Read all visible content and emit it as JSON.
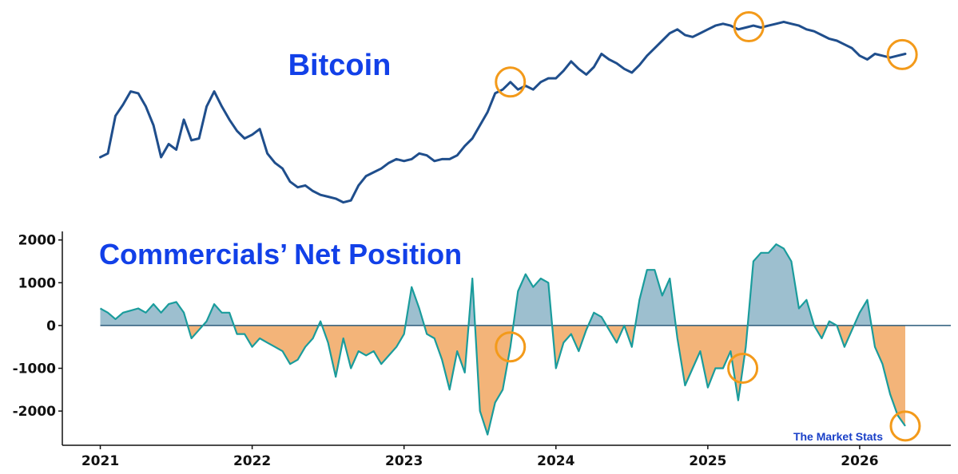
{
  "chart_data": [
    {
      "type": "line",
      "title": "Bitcoin",
      "y_axis_shown": false,
      "x": [
        2021.0,
        2021.05,
        2021.1,
        2021.15,
        2021.2,
        2021.25,
        2021.3,
        2021.35,
        2021.4,
        2021.45,
        2021.5,
        2021.55,
        2021.6,
        2021.65,
        2021.7,
        2021.75,
        2021.8,
        2021.85,
        2021.9,
        2021.95,
        2022.0,
        2022.05,
        2022.1,
        2022.15,
        2022.2,
        2022.25,
        2022.3,
        2022.35,
        2022.4,
        2022.45,
        2022.5,
        2022.55,
        2022.6,
        2022.65,
        2022.7,
        2022.75,
        2022.8,
        2022.85,
        2022.9,
        2022.95,
        2023.0,
        2023.05,
        2023.1,
        2023.15,
        2023.2,
        2023.25,
        2023.3,
        2023.35,
        2023.4,
        2023.45,
        2023.5,
        2023.55,
        2023.6,
        2023.65,
        2023.7,
        2023.75,
        2023.8,
        2023.85,
        2023.9,
        2023.95,
        2024.0,
        2024.05,
        2024.1,
        2024.15,
        2024.2,
        2024.25,
        2024.3,
        2024.35,
        2024.4,
        2024.45,
        2024.5,
        2024.55,
        2024.6,
        2024.65,
        2024.7,
        2024.75,
        2024.8,
        2024.85,
        2024.9,
        2024.95,
        2025.0,
        2025.05,
        2025.1,
        2025.15,
        2025.2,
        2025.25,
        2025.3,
        2025.35,
        2025.4,
        2025.45,
        2025.5,
        2025.55,
        2025.6,
        2025.65,
        2025.7,
        2025.75,
        2025.8,
        2025.85,
        2025.9,
        2025.95,
        2026.0,
        2026.05,
        2026.1,
        2026.15,
        2026.2,
        2026.25,
        2026.3
      ],
      "values": [
        28,
        30,
        50,
        56,
        63,
        62,
        55,
        45,
        28,
        35,
        32,
        48,
        37,
        38,
        55,
        63,
        55,
        48,
        42,
        38,
        40,
        43,
        30,
        25,
        22,
        15,
        12,
        13,
        10,
        8,
        7,
        6,
        4,
        5,
        13,
        18,
        20,
        22,
        25,
        27,
        26,
        27,
        30,
        29,
        26,
        27,
        27,
        29,
        34,
        38,
        45,
        52,
        62,
        64,
        68,
        64,
        66,
        64,
        68,
        70,
        70,
        74,
        79,
        75,
        72,
        76,
        83,
        80,
        78,
        75,
        73,
        77,
        82,
        86,
        90,
        94,
        96,
        93,
        92,
        94,
        96,
        98,
        99,
        98,
        96,
        97,
        98,
        97,
        98,
        99,
        100,
        99,
        98,
        96,
        95,
        93,
        91,
        90,
        88,
        86,
        82,
        80,
        83,
        82,
        81,
        82,
        83
      ],
      "ylim": [
        0,
        104
      ],
      "highlight_x": [
        2023.7,
        2025.27,
        2026.28
      ]
    },
    {
      "type": "area",
      "title": "Commercials’ Net Position",
      "ylim": [
        -2800,
        2200
      ],
      "y_ticks": [
        2000,
        1000,
        0,
        -1000,
        -2000
      ],
      "y_tick_labels": [
        "2000",
        "1000",
        "0",
        "-1000",
        "-2000"
      ],
      "x_ticks": [
        2021,
        2022,
        2023,
        2024,
        2025,
        2026
      ],
      "x_tick_labels": [
        "2021",
        "2022",
        "2023",
        "2024",
        "2025",
        "2026"
      ],
      "xlim": [
        2020.75,
        2026.6
      ],
      "x": [
        2021.0,
        2021.05,
        2021.1,
        2021.15,
        2021.2,
        2021.25,
        2021.3,
        2021.35,
        2021.4,
        2021.45,
        2021.5,
        2021.55,
        2021.6,
        2021.65,
        2021.7,
        2021.75,
        2021.8,
        2021.85,
        2021.9,
        2021.95,
        2022.0,
        2022.05,
        2022.1,
        2022.15,
        2022.2,
        2022.25,
        2022.3,
        2022.35,
        2022.4,
        2022.45,
        2022.5,
        2022.55,
        2022.6,
        2022.65,
        2022.7,
        2022.75,
        2022.8,
        2022.85,
        2022.9,
        2022.95,
        2023.0,
        2023.05,
        2023.1,
        2023.15,
        2023.2,
        2023.25,
        2023.3,
        2023.35,
        2023.4,
        2023.45,
        2023.5,
        2023.55,
        2023.6,
        2023.65,
        2023.7,
        2023.75,
        2023.8,
        2023.85,
        2023.9,
        2023.95,
        2024.0,
        2024.05,
        2024.1,
        2024.15,
        2024.2,
        2024.25,
        2024.3,
        2024.35,
        2024.4,
        2024.45,
        2024.5,
        2024.55,
        2024.6,
        2024.65,
        2024.7,
        2024.75,
        2024.8,
        2024.85,
        2024.9,
        2024.95,
        2025.0,
        2025.05,
        2025.1,
        2025.15,
        2025.2,
        2025.25,
        2025.3,
        2025.35,
        2025.4,
        2025.45,
        2025.5,
        2025.55,
        2025.6,
        2025.65,
        2025.7,
        2025.75,
        2025.8,
        2025.85,
        2025.9,
        2025.95,
        2026.0,
        2026.05,
        2026.1,
        2026.15,
        2026.2,
        2026.25,
        2026.3
      ],
      "values": [
        400,
        300,
        150,
        300,
        350,
        400,
        300,
        500,
        300,
        500,
        550,
        300,
        -300,
        -100,
        100,
        500,
        300,
        300,
        -200,
        -200,
        -500,
        -300,
        -400,
        -500,
        -600,
        -900,
        -800,
        -500,
        -300,
        100,
        -400,
        -1200,
        -300,
        -1000,
        -600,
        -700,
        -600,
        -900,
        -700,
        -500,
        -200,
        900,
        400,
        -200,
        -300,
        -800,
        -1500,
        -600,
        -1100,
        1100,
        -2000,
        -2550,
        -1800,
        -1500,
        -500,
        800,
        1200,
        900,
        1100,
        1000,
        -1000,
        -400,
        -200,
        -600,
        -100,
        300,
        200,
        -100,
        -400,
        0,
        -500,
        600,
        1300,
        1300,
        700,
        1100,
        -300,
        -1400,
        -1000,
        -600,
        -1450,
        -1000,
        -1000,
        -600,
        -1750,
        -500,
        1500,
        1700,
        1700,
        1900,
        1800,
        1500,
        400,
        600,
        0,
        -300,
        100,
        0,
        -500,
        -100,
        300,
        600,
        -500,
        -900,
        -1600,
        -2100,
        -2350
      ],
      "series_labels": {
        "positive": "",
        "negative": ""
      },
      "colors": {
        "line": "#1a9c9c",
        "positive_fill": "#9dbfcf",
        "negative_fill": "#f3b479",
        "zero_line": "#2a5a7a"
      },
      "highlight_x": [
        2023.7,
        2025.23,
        2026.3
      ]
    }
  ],
  "watermark": "The Market Stats",
  "colors": {
    "bitcoin_line": "#1f4e8c",
    "title_blue": "#1240e8",
    "highlight_circle": "#f39a1a",
    "watermark_blue": "#1a40c8"
  }
}
